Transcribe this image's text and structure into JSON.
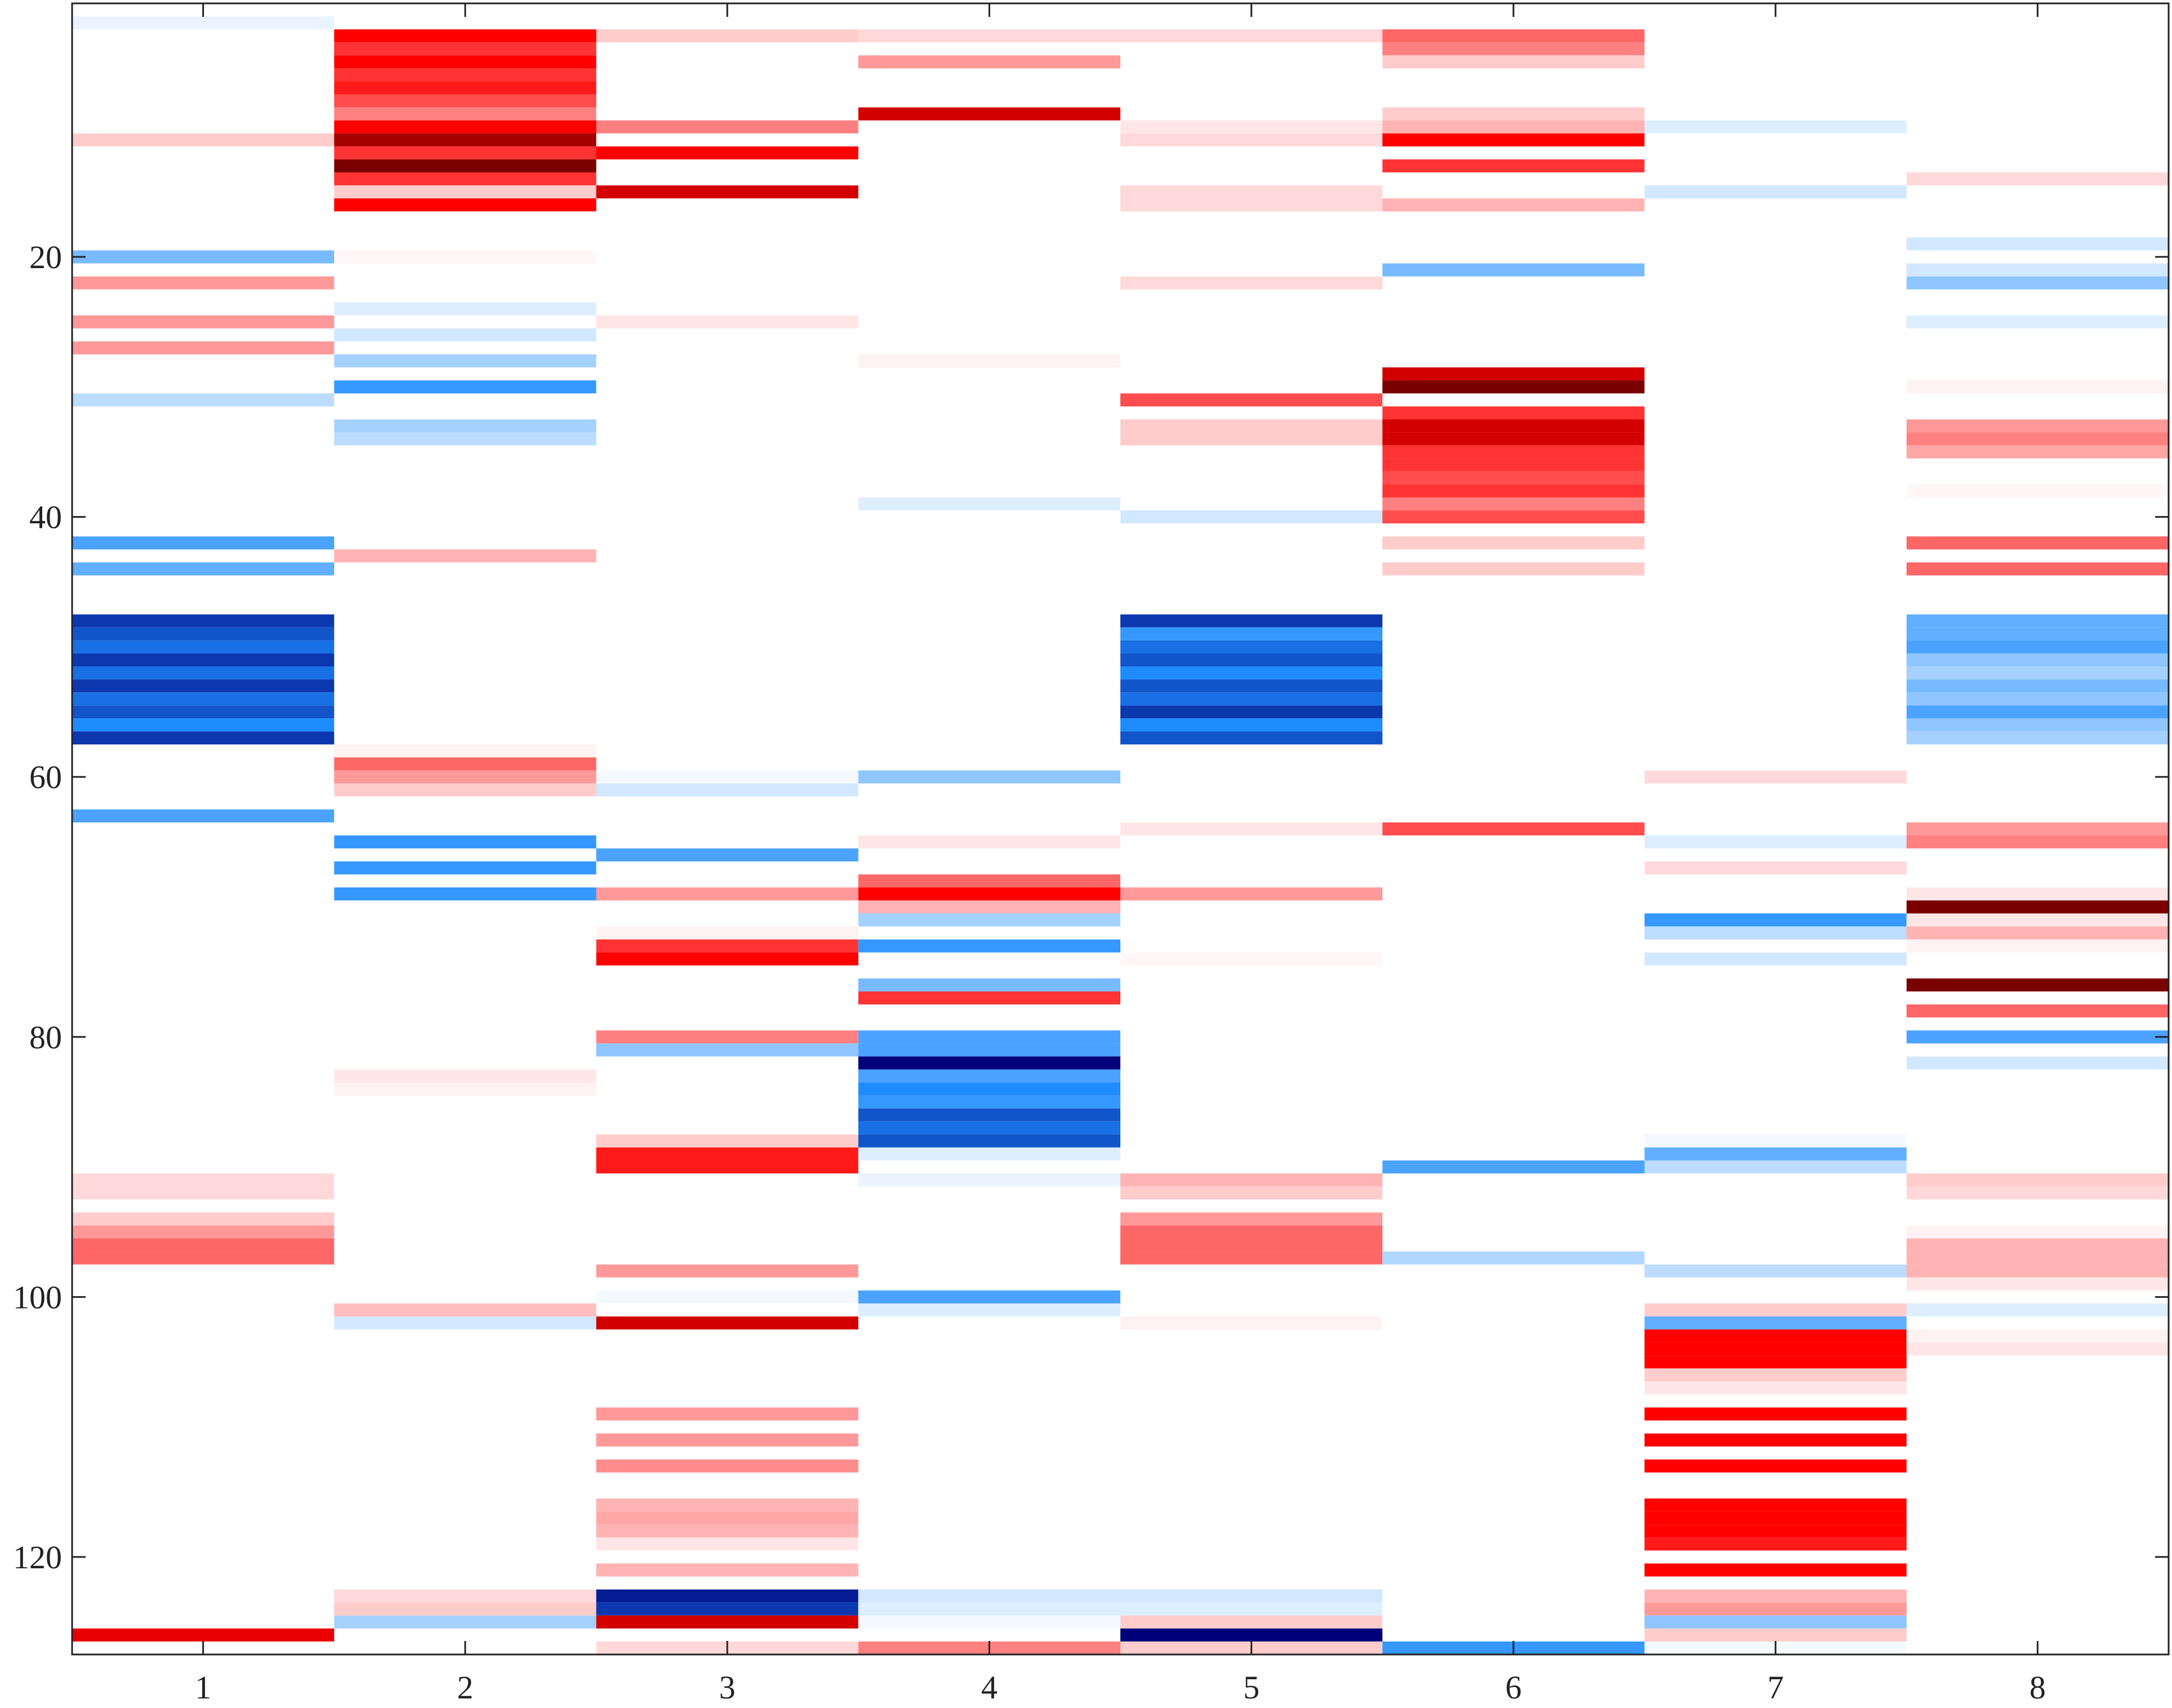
{
  "chart_data": {
    "type": "heatmap",
    "title": "",
    "xlabel": "",
    "ylabel": "",
    "columns": [
      1,
      2,
      3,
      4,
      5,
      6,
      7,
      8
    ],
    "x_ticks": [
      "1",
      "2",
      "3",
      "4",
      "5",
      "6",
      "7",
      "8"
    ],
    "y_ticks": [
      "20",
      "40",
      "60",
      "80",
      "100",
      "120"
    ],
    "y_tick_values": [
      20,
      40,
      60,
      80,
      100,
      120
    ],
    "xlim": [
      0.5,
      8.5
    ],
    "ylim": [
      0.5,
      127.5
    ],
    "y_reversed": true,
    "grid": false,
    "colormap": "blue-white-red (diverging)",
    "colorscale_range": [
      -1,
      1
    ],
    "colors": {
      "positive_strong": "#7a0000",
      "positive": "#ff0000",
      "neutral": "#ffffff",
      "negative": "#1e8cff",
      "negative_strong": "#00007a",
      "axis": "#222222"
    },
    "cells": [
      {
        "col": 1,
        "row": 2,
        "v": -0.1
      },
      {
        "col": 1,
        "row": 11,
        "v": 0.2
      },
      {
        "col": 1,
        "row": 20,
        "v": -0.6
      },
      {
        "col": 1,
        "row": 22,
        "v": 0.4
      },
      {
        "col": 1,
        "row": 25,
        "v": 0.4
      },
      {
        "col": 1,
        "row": 27,
        "v": 0.4
      },
      {
        "col": 1,
        "row": 31,
        "v": -0.3
      },
      {
        "col": 1,
        "row": 42,
        "v": -0.8
      },
      {
        "col": 1,
        "row": 44,
        "v": -0.7
      },
      {
        "col": 1,
        "row": 48,
        "v": -1.3
      },
      {
        "col": 1,
        "row": 49,
        "v": -1.2
      },
      {
        "col": 1,
        "row": 50,
        "v": -1.1
      },
      {
        "col": 1,
        "row": 51,
        "v": -1.3
      },
      {
        "col": 1,
        "row": 52,
        "v": -1.1
      },
      {
        "col": 1,
        "row": 53,
        "v": -1.3
      },
      {
        "col": 1,
        "row": 54,
        "v": -1.1
      },
      {
        "col": 1,
        "row": 55,
        "v": -1.2
      },
      {
        "col": 1,
        "row": 56,
        "v": -1.0
      },
      {
        "col": 1,
        "row": 57,
        "v": -1.3
      },
      {
        "col": 1,
        "row": 63,
        "v": -0.8
      },
      {
        "col": 1,
        "row": 91,
        "v": 0.15
      },
      {
        "col": 1,
        "row": 92,
        "v": 0.15
      },
      {
        "col": 1,
        "row": 94,
        "v": 0.2
      },
      {
        "col": 1,
        "row": 95,
        "v": 0.4
      },
      {
        "col": 1,
        "row": 96,
        "v": 0.6
      },
      {
        "col": 1,
        "row": 97,
        "v": 0.6
      },
      {
        "col": 1,
        "row": 126,
        "v": 1.05
      },
      {
        "col": 2,
        "row": 3,
        "v": 1.0
      },
      {
        "col": 2,
        "row": 4,
        "v": 0.8
      },
      {
        "col": 2,
        "row": 5,
        "v": 1.0
      },
      {
        "col": 2,
        "row": 6,
        "v": 0.8
      },
      {
        "col": 2,
        "row": 7,
        "v": 0.9
      },
      {
        "col": 2,
        "row": 8,
        "v": 0.7
      },
      {
        "col": 2,
        "row": 9,
        "v": 0.5
      },
      {
        "col": 2,
        "row": 10,
        "v": 1.0
      },
      {
        "col": 2,
        "row": 11,
        "v": 1.2
      },
      {
        "col": 2,
        "row": 12,
        "v": 0.8
      },
      {
        "col": 2,
        "row": 13,
        "v": 1.3
      },
      {
        "col": 2,
        "row": 14,
        "v": 0.8
      },
      {
        "col": 2,
        "row": 15,
        "v": 0.2
      },
      {
        "col": 2,
        "row": 16,
        "v": 1.0
      },
      {
        "col": 2,
        "row": 20,
        "v": 0.03
      },
      {
        "col": 2,
        "row": 24,
        "v": -0.15
      },
      {
        "col": 2,
        "row": 26,
        "v": -0.2
      },
      {
        "col": 2,
        "row": 28,
        "v": -0.4
      },
      {
        "col": 2,
        "row": 30,
        "v": -0.9
      },
      {
        "col": 2,
        "row": 33,
        "v": -0.4
      },
      {
        "col": 2,
        "row": 34,
        "v": -0.3
      },
      {
        "col": 2,
        "row": 43,
        "v": 0.3
      },
      {
        "col": 2,
        "row": 58,
        "v": 0.05
      },
      {
        "col": 2,
        "row": 59,
        "v": 0.6
      },
      {
        "col": 2,
        "row": 60,
        "v": 0.4
      },
      {
        "col": 2,
        "row": 61,
        "v": 0.2
      },
      {
        "col": 2,
        "row": 65,
        "v": -0.9
      },
      {
        "col": 2,
        "row": 67,
        "v": -0.9
      },
      {
        "col": 2,
        "row": 69,
        "v": -0.9
      },
      {
        "col": 2,
        "row": 83,
        "v": 0.1
      },
      {
        "col": 2,
        "row": 84,
        "v": 0.05
      },
      {
        "col": 2,
        "row": 101,
        "v": 0.25
      },
      {
        "col": 2,
        "row": 102,
        "v": -0.2
      },
      {
        "col": 2,
        "row": 123,
        "v": 0.15
      },
      {
        "col": 2,
        "row": 124,
        "v": 0.2
      },
      {
        "col": 2,
        "row": 125,
        "v": -0.4
      },
      {
        "col": 3,
        "row": 3,
        "v": 0.2
      },
      {
        "col": 3,
        "row": 10,
        "v": 0.5
      },
      {
        "col": 3,
        "row": 12,
        "v": 1.0
      },
      {
        "col": 3,
        "row": 15,
        "v": 1.1
      },
      {
        "col": 3,
        "row": 25,
        "v": 0.1
      },
      {
        "col": 3,
        "row": 60,
        "v": -0.05
      },
      {
        "col": 3,
        "row": 61,
        "v": -0.2
      },
      {
        "col": 3,
        "row": 66,
        "v": -0.8
      },
      {
        "col": 3,
        "row": 69,
        "v": 0.4
      },
      {
        "col": 3,
        "row": 72,
        "v": 0.05
      },
      {
        "col": 3,
        "row": 73,
        "v": 0.8
      },
      {
        "col": 3,
        "row": 74,
        "v": 1.0
      },
      {
        "col": 3,
        "row": 80,
        "v": 0.5
      },
      {
        "col": 3,
        "row": 81,
        "v": -0.5
      },
      {
        "col": 3,
        "row": 88,
        "v": 0.2
      },
      {
        "col": 3,
        "row": 89,
        "v": 0.9
      },
      {
        "col": 3,
        "row": 90,
        "v": 0.9
      },
      {
        "col": 3,
        "row": 98,
        "v": 0.4
      },
      {
        "col": 3,
        "row": 100,
        "v": -0.05
      },
      {
        "col": 3,
        "row": 102,
        "v": 1.1
      },
      {
        "col": 3,
        "row": 109,
        "v": 0.4
      },
      {
        "col": 3,
        "row": 111,
        "v": 0.4
      },
      {
        "col": 3,
        "row": 113,
        "v": 0.45
      },
      {
        "col": 3,
        "row": 116,
        "v": 0.3
      },
      {
        "col": 3,
        "row": 117,
        "v": 0.35
      },
      {
        "col": 3,
        "row": 118,
        "v": 0.3
      },
      {
        "col": 3,
        "row": 119,
        "v": 0.1
      },
      {
        "col": 3,
        "row": 121,
        "v": 0.3
      },
      {
        "col": 3,
        "row": 123,
        "v": -1.4
      },
      {
        "col": 3,
        "row": 124,
        "v": -1.3
      },
      {
        "col": 3,
        "row": 125,
        "v": 1.1
      },
      {
        "col": 3,
        "row": 127,
        "v": 0.15
      },
      {
        "col": 4,
        "row": 3,
        "v": 0.15
      },
      {
        "col": 4,
        "row": 5,
        "v": 0.4
      },
      {
        "col": 4,
        "row": 9,
        "v": 1.1
      },
      {
        "col": 4,
        "row": 28,
        "v": 0.05
      },
      {
        "col": 4,
        "row": 39,
        "v": -0.15
      },
      {
        "col": 4,
        "row": 60,
        "v": -0.5
      },
      {
        "col": 4,
        "row": 65,
        "v": 0.1
      },
      {
        "col": 4,
        "row": 68,
        "v": 0.6
      },
      {
        "col": 4,
        "row": 69,
        "v": 1.0
      },
      {
        "col": 4,
        "row": 70,
        "v": 0.3
      },
      {
        "col": 4,
        "row": 71,
        "v": -0.4
      },
      {
        "col": 4,
        "row": 73,
        "v": -0.9
      },
      {
        "col": 4,
        "row": 76,
        "v": -0.6
      },
      {
        "col": 4,
        "row": 77,
        "v": 0.8
      },
      {
        "col": 4,
        "row": 80,
        "v": -0.8
      },
      {
        "col": 4,
        "row": 81,
        "v": -0.8
      },
      {
        "col": 4,
        "row": 82,
        "v": -1.5
      },
      {
        "col": 4,
        "row": 83,
        "v": -0.8
      },
      {
        "col": 4,
        "row": 84,
        "v": -1.0
      },
      {
        "col": 4,
        "row": 85,
        "v": -0.9
      },
      {
        "col": 4,
        "row": 86,
        "v": -1.2
      },
      {
        "col": 4,
        "row": 87,
        "v": -1.1
      },
      {
        "col": 4,
        "row": 88,
        "v": -1.2
      },
      {
        "col": 4,
        "row": 89,
        "v": -0.15
      },
      {
        "col": 4,
        "row": 91,
        "v": -0.1
      },
      {
        "col": 4,
        "row": 100,
        "v": -0.8
      },
      {
        "col": 4,
        "row": 101,
        "v": -0.15
      },
      {
        "col": 4,
        "row": 123,
        "v": -0.2
      },
      {
        "col": 4,
        "row": 124,
        "v": -0.15
      },
      {
        "col": 4,
        "row": 125,
        "v": -0.05
      },
      {
        "col": 4,
        "row": 127,
        "v": 0.5
      },
      {
        "col": 5,
        "row": 3,
        "v": 0.15
      },
      {
        "col": 5,
        "row": 10,
        "v": 0.1
      },
      {
        "col": 5,
        "row": 11,
        "v": 0.15
      },
      {
        "col": 5,
        "row": 15,
        "v": 0.15
      },
      {
        "col": 5,
        "row": 16,
        "v": 0.15
      },
      {
        "col": 5,
        "row": 22,
        "v": 0.15
      },
      {
        "col": 5,
        "row": 31,
        "v": 0.7
      },
      {
        "col": 5,
        "row": 33,
        "v": 0.2
      },
      {
        "col": 5,
        "row": 34,
        "v": 0.2
      },
      {
        "col": 5,
        "row": 40,
        "v": -0.2
      },
      {
        "col": 5,
        "row": 48,
        "v": -1.3
      },
      {
        "col": 5,
        "row": 49,
        "v": -0.9
      },
      {
        "col": 5,
        "row": 50,
        "v": -1.1
      },
      {
        "col": 5,
        "row": 51,
        "v": -1.2
      },
      {
        "col": 5,
        "row": 52,
        "v": -1.0
      },
      {
        "col": 5,
        "row": 53,
        "v": -1.2
      },
      {
        "col": 5,
        "row": 54,
        "v": -1.1
      },
      {
        "col": 5,
        "row": 55,
        "v": -1.3
      },
      {
        "col": 5,
        "row": 56,
        "v": -1.0
      },
      {
        "col": 5,
        "row": 57,
        "v": -1.2
      },
      {
        "col": 5,
        "row": 64,
        "v": 0.1
      },
      {
        "col": 5,
        "row": 69,
        "v": 0.4
      },
      {
        "col": 5,
        "row": 74,
        "v": 0.03
      },
      {
        "col": 5,
        "row": 91,
        "v": 0.3
      },
      {
        "col": 5,
        "row": 92,
        "v": 0.2
      },
      {
        "col": 5,
        "row": 94,
        "v": 0.4
      },
      {
        "col": 5,
        "row": 95,
        "v": 0.6
      },
      {
        "col": 5,
        "row": 96,
        "v": 0.6
      },
      {
        "col": 5,
        "row": 97,
        "v": 0.6
      },
      {
        "col": 5,
        "row": 102,
        "v": 0.05
      },
      {
        "col": 5,
        "row": 123,
        "v": -0.2
      },
      {
        "col": 5,
        "row": 124,
        "v": -0.15
      },
      {
        "col": 5,
        "row": 125,
        "v": 0.2
      },
      {
        "col": 5,
        "row": 126,
        "v": -1.5
      },
      {
        "col": 5,
        "row": 127,
        "v": 0.2
      },
      {
        "col": 6,
        "row": 3,
        "v": 0.6
      },
      {
        "col": 6,
        "row": 4,
        "v": 0.5
      },
      {
        "col": 6,
        "row": 5,
        "v": 0.2
      },
      {
        "col": 6,
        "row": 9,
        "v": 0.2
      },
      {
        "col": 6,
        "row": 10,
        "v": 0.3
      },
      {
        "col": 6,
        "row": 11,
        "v": 1.0
      },
      {
        "col": 6,
        "row": 13,
        "v": 0.8
      },
      {
        "col": 6,
        "row": 16,
        "v": 0.3
      },
      {
        "col": 6,
        "row": 21,
        "v": -0.6
      },
      {
        "col": 6,
        "row": 29,
        "v": 1.1
      },
      {
        "col": 6,
        "row": 30,
        "v": 1.3
      },
      {
        "col": 6,
        "row": 32,
        "v": 0.8
      },
      {
        "col": 6,
        "row": 33,
        "v": 1.1
      },
      {
        "col": 6,
        "row": 34,
        "v": 1.1
      },
      {
        "col": 6,
        "row": 35,
        "v": 0.8
      },
      {
        "col": 6,
        "row": 36,
        "v": 0.8
      },
      {
        "col": 6,
        "row": 37,
        "v": 0.7
      },
      {
        "col": 6,
        "row": 38,
        "v": 0.8
      },
      {
        "col": 6,
        "row": 39,
        "v": 0.5
      },
      {
        "col": 6,
        "row": 40,
        "v": 0.7
      },
      {
        "col": 6,
        "row": 42,
        "v": 0.2
      },
      {
        "col": 6,
        "row": 44,
        "v": 0.2
      },
      {
        "col": 6,
        "row": 64,
        "v": 0.7
      },
      {
        "col": 6,
        "row": 90,
        "v": -0.8
      },
      {
        "col": 6,
        "row": 97,
        "v": -0.35
      },
      {
        "col": 6,
        "row": 127,
        "v": -0.9
      },
      {
        "col": 7,
        "row": 10,
        "v": -0.15
      },
      {
        "col": 7,
        "row": 15,
        "v": -0.2
      },
      {
        "col": 7,
        "row": 60,
        "v": 0.15
      },
      {
        "col": 7,
        "row": 65,
        "v": -0.15
      },
      {
        "col": 7,
        "row": 67,
        "v": 0.15
      },
      {
        "col": 7,
        "row": 71,
        "v": -0.9
      },
      {
        "col": 7,
        "row": 72,
        "v": -0.3
      },
      {
        "col": 7,
        "row": 74,
        "v": -0.2
      },
      {
        "col": 7,
        "row": 88,
        "v": -0.05
      },
      {
        "col": 7,
        "row": 89,
        "v": -0.7
      },
      {
        "col": 7,
        "row": 90,
        "v": -0.3
      },
      {
        "col": 7,
        "row": 98,
        "v": -0.3
      },
      {
        "col": 7,
        "row": 101,
        "v": 0.2
      },
      {
        "col": 7,
        "row": 102,
        "v": -0.7
      },
      {
        "col": 7,
        "row": 103,
        "v": 1.0
      },
      {
        "col": 7,
        "row": 104,
        "v": 1.0
      },
      {
        "col": 7,
        "row": 105,
        "v": 1.0
      },
      {
        "col": 7,
        "row": 106,
        "v": 0.2
      },
      {
        "col": 7,
        "row": 107,
        "v": 0.1
      },
      {
        "col": 7,
        "row": 109,
        "v": 1.0
      },
      {
        "col": 7,
        "row": 111,
        "v": 1.0
      },
      {
        "col": 7,
        "row": 113,
        "v": 1.0
      },
      {
        "col": 7,
        "row": 116,
        "v": 1.0
      },
      {
        "col": 7,
        "row": 117,
        "v": 1.0
      },
      {
        "col": 7,
        "row": 118,
        "v": 1.0
      },
      {
        "col": 7,
        "row": 119,
        "v": 0.9
      },
      {
        "col": 7,
        "row": 121,
        "v": 1.0
      },
      {
        "col": 7,
        "row": 123,
        "v": 0.3
      },
      {
        "col": 7,
        "row": 124,
        "v": 0.4
      },
      {
        "col": 7,
        "row": 125,
        "v": -0.5
      },
      {
        "col": 7,
        "row": 126,
        "v": 0.2
      },
      {
        "col": 7,
        "row": 127,
        "v": -0.05
      },
      {
        "col": 8,
        "row": 14,
        "v": 0.15
      },
      {
        "col": 8,
        "row": 19,
        "v": -0.2
      },
      {
        "col": 8,
        "row": 21,
        "v": -0.2
      },
      {
        "col": 8,
        "row": 22,
        "v": -0.5
      },
      {
        "col": 8,
        "row": 25,
        "v": -0.15
      },
      {
        "col": 8,
        "row": 30,
        "v": 0.05
      },
      {
        "col": 8,
        "row": 33,
        "v": 0.4
      },
      {
        "col": 8,
        "row": 34,
        "v": 0.5
      },
      {
        "col": 8,
        "row": 35,
        "v": 0.35
      },
      {
        "col": 8,
        "row": 38,
        "v": 0.03
      },
      {
        "col": 8,
        "row": 42,
        "v": 0.6
      },
      {
        "col": 8,
        "row": 44,
        "v": 0.6
      },
      {
        "col": 8,
        "row": 48,
        "v": -0.7
      },
      {
        "col": 8,
        "row": 49,
        "v": -0.7
      },
      {
        "col": 8,
        "row": 50,
        "v": -0.8
      },
      {
        "col": 8,
        "row": 51,
        "v": -0.5
      },
      {
        "col": 8,
        "row": 52,
        "v": -0.4
      },
      {
        "col": 8,
        "row": 53,
        "v": -0.6
      },
      {
        "col": 8,
        "row": 54,
        "v": -0.5
      },
      {
        "col": 8,
        "row": 55,
        "v": -0.8
      },
      {
        "col": 8,
        "row": 56,
        "v": -0.5
      },
      {
        "col": 8,
        "row": 57,
        "v": -0.4
      },
      {
        "col": 8,
        "row": 64,
        "v": 0.4
      },
      {
        "col": 8,
        "row": 65,
        "v": 0.5
      },
      {
        "col": 8,
        "row": 69,
        "v": 0.1
      },
      {
        "col": 8,
        "row": 70,
        "v": 1.3
      },
      {
        "col": 8,
        "row": 71,
        "v": 0.1
      },
      {
        "col": 8,
        "row": 72,
        "v": 0.3
      },
      {
        "col": 8,
        "row": 73,
        "v": 0.05
      },
      {
        "col": 8,
        "row": 76,
        "v": 1.3
      },
      {
        "col": 8,
        "row": 78,
        "v": 0.6
      },
      {
        "col": 8,
        "row": 80,
        "v": -0.8
      },
      {
        "col": 8,
        "row": 82,
        "v": -0.2
      },
      {
        "col": 8,
        "row": 91,
        "v": 0.2
      },
      {
        "col": 8,
        "row": 92,
        "v": 0.15
      },
      {
        "col": 8,
        "row": 95,
        "v": 0.05
      },
      {
        "col": 8,
        "row": 96,
        "v": 0.3
      },
      {
        "col": 8,
        "row": 97,
        "v": 0.3
      },
      {
        "col": 8,
        "row": 98,
        "v": 0.3
      },
      {
        "col": 8,
        "row": 99,
        "v": 0.1
      },
      {
        "col": 8,
        "row": 101,
        "v": -0.15
      },
      {
        "col": 8,
        "row": 103,
        "v": 0.05
      },
      {
        "col": 8,
        "row": 104,
        "v": 0.1
      }
    ]
  }
}
